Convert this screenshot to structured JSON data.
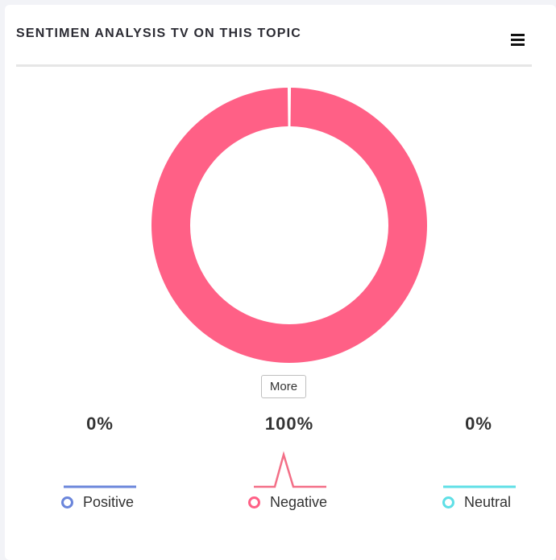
{
  "header": {
    "title": "SENTIMEN ANALYSIS TV ON THIS TOPIC",
    "menu_icon": "hamburger-menu-icon"
  },
  "more_button": {
    "label": "More"
  },
  "colors": {
    "positive": "#6b86db",
    "negative": "#ff6086",
    "negative_line": "#f36f87",
    "neutral": "#5fdfe6"
  },
  "chart_data": {
    "type": "pie",
    "series": [
      {
        "name": "Positive",
        "value": 0,
        "color": "#6b86db"
      },
      {
        "name": "Negative",
        "value": 100,
        "color": "#ff6086"
      },
      {
        "name": "Neutral",
        "value": 0,
        "color": "#5fdfe6"
      }
    ]
  },
  "stats": [
    {
      "label": "Positive",
      "value": "0%"
    },
    {
      "label": "Negative",
      "value": "100%"
    },
    {
      "label": "Neutral",
      "value": "0%"
    }
  ]
}
